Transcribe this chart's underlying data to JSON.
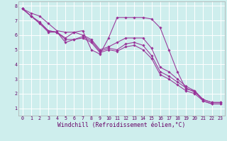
{
  "xlabel": "Windchill (Refroidissement éolien,°C)",
  "background_color": "#ceeeed",
  "grid_color": "#ffffff",
  "line_color": "#993399",
  "marker": "D",
  "markersize": 1.8,
  "linewidth": 0.75,
  "x": [
    0,
    1,
    2,
    3,
    4,
    5,
    6,
    7,
    8,
    9,
    10,
    11,
    12,
    13,
    14,
    15,
    16,
    17,
    18,
    19,
    20,
    21,
    22,
    23
  ],
  "lines": [
    [
      7.8,
      7.5,
      7.3,
      6.8,
      6.3,
      6.2,
      6.2,
      6.3,
      5.0,
      4.7,
      5.8,
      7.2,
      7.2,
      7.2,
      7.2,
      7.1,
      6.5,
      5.0,
      3.5,
      2.3,
      2.2,
      1.5,
      1.3,
      1.3
    ],
    [
      7.8,
      7.3,
      6.9,
      6.3,
      6.2,
      5.8,
      6.2,
      6.0,
      5.7,
      5.0,
      5.2,
      5.5,
      5.8,
      5.8,
      5.8,
      5.1,
      3.8,
      3.5,
      3.0,
      2.5,
      2.2,
      1.6,
      1.4,
      1.4
    ],
    [
      7.8,
      7.3,
      6.8,
      6.3,
      6.2,
      5.7,
      5.7,
      5.9,
      5.6,
      4.9,
      5.1,
      5.0,
      5.4,
      5.5,
      5.3,
      4.6,
      3.5,
      3.2,
      2.8,
      2.4,
      2.1,
      1.6,
      1.4,
      1.4
    ],
    [
      7.8,
      7.3,
      6.8,
      6.2,
      6.2,
      5.5,
      5.7,
      5.8,
      5.5,
      4.8,
      5.0,
      4.9,
      5.2,
      5.3,
      5.0,
      4.4,
      3.3,
      3.0,
      2.6,
      2.2,
      2.0,
      1.5,
      1.3,
      1.3
    ]
  ],
  "ylim": [
    0.5,
    8.3
  ],
  "xlim": [
    -0.5,
    23.5
  ],
  "yticks": [
    1,
    2,
    3,
    4,
    5,
    6,
    7,
    8
  ],
  "xticks": [
    0,
    1,
    2,
    3,
    4,
    5,
    6,
    7,
    8,
    9,
    10,
    11,
    12,
    13,
    14,
    15,
    16,
    17,
    18,
    19,
    20,
    21,
    22,
    23
  ],
  "tick_fontsize": 4.8,
  "xlabel_fontsize": 5.8,
  "tick_color": "#660066",
  "spine_color": "#aaaaaa"
}
